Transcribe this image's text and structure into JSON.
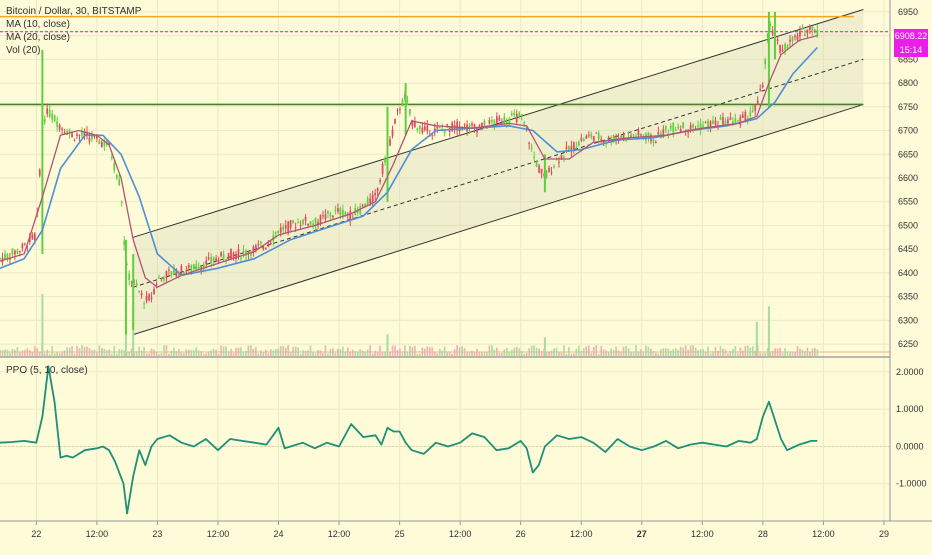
{
  "header": {
    "symbol": "Bitcoin / Dollar, 30, BITSTAMP",
    "indicators": [
      "MA (10, close)",
      "MA (20, close)",
      "Vol (20)"
    ]
  },
  "ppo_pane": {
    "title": "PPO (5, 10, close)"
  },
  "last_price": {
    "value": "6908.22",
    "countdown": "15:14",
    "color": "#e91ee9"
  },
  "colors": {
    "background": "#fdfbd8",
    "grid": "#ece9c4",
    "up_candle": "#5fcf3f",
    "down_candle": "#e04a5a",
    "ma10": "#b2566f",
    "ma20": "#4f8fd6",
    "ppo_line": "#1e8f78",
    "resistance": "#f5a623",
    "support": "#4b7f2a",
    "channel": "#333333"
  },
  "chart_data": [
    {
      "type": "candlestick",
      "title": "Bitcoin / Dollar, 30, BITSTAMP",
      "y_axis_ticks": [
        6250,
        6300,
        6350,
        6400,
        6450,
        6500,
        6550,
        6600,
        6650,
        6700,
        6750,
        6800,
        6850,
        6900,
        6950
      ],
      "ylim": [
        6225,
        6975
      ],
      "x_axis_ticks": [
        "22",
        "12:00",
        "23",
        "12:00",
        "24",
        "12:00",
        "25",
        "12:00",
        "26",
        "12:00",
        "27",
        "12:00",
        "28",
        "12:00",
        "29"
      ],
      "x_tick_day": [
        0,
        0.5,
        1,
        1.5,
        2,
        2.5,
        3,
        3.5,
        4,
        4.5,
        5,
        5.5,
        6,
        6.5,
        7
      ],
      "xlim_day": [
        -0.3,
        7.05
      ],
      "horizontal_levels": [
        {
          "price": 6940,
          "style": "solid",
          "color": "#f5a623"
        },
        {
          "price": 6908.22,
          "style": "dashed",
          "color": "#e91ee9"
        },
        {
          "price": 6755,
          "style": "solid",
          "color": "#4b7f2a"
        }
      ],
      "channel": {
        "start_day": 0.8,
        "end_day": 6.83,
        "upper": [
          6475,
          6955
        ],
        "middle": [
          6370,
          6850
        ],
        "lower": [
          6270,
          6755
        ]
      },
      "close_path": [
        [
          -0.3,
          6430
        ],
        [
          -0.2,
          6440
        ],
        [
          -0.1,
          6455
        ],
        [
          -0.05,
          6470
        ],
        [
          0.0,
          6480
        ],
        [
          0.05,
          6720
        ],
        [
          0.1,
          6740
        ],
        [
          0.2,
          6710
        ],
        [
          0.3,
          6690
        ],
        [
          0.4,
          6690
        ],
        [
          0.5,
          6680
        ],
        [
          0.6,
          6670
        ],
        [
          0.65,
          6620
        ],
        [
          0.7,
          6580
        ],
        [
          0.72,
          6480
        ],
        [
          0.75,
          6400
        ],
        [
          0.8,
          6380
        ],
        [
          0.85,
          6360
        ],
        [
          0.9,
          6340
        ],
        [
          0.95,
          6350
        ],
        [
          1.0,
          6385
        ],
        [
          1.1,
          6400
        ],
        [
          1.2,
          6405
        ],
        [
          1.3,
          6410
        ],
        [
          1.4,
          6420
        ],
        [
          1.5,
          6430
        ],
        [
          1.6,
          6440
        ],
        [
          1.7,
          6440
        ],
        [
          1.8,
          6450
        ],
        [
          1.9,
          6460
        ],
        [
          2.0,
          6490
        ],
        [
          2.1,
          6500
        ],
        [
          2.2,
          6510
        ],
        [
          2.3,
          6505
        ],
        [
          2.4,
          6520
        ],
        [
          2.5,
          6530
        ],
        [
          2.6,
          6520
        ],
        [
          2.7,
          6540
        ],
        [
          2.8,
          6560
        ],
        [
          2.9,
          6660
        ],
        [
          3.0,
          6750
        ],
        [
          3.05,
          6770
        ],
        [
          3.1,
          6720
        ],
        [
          3.15,
          6710
        ],
        [
          3.2,
          6700
        ],
        [
          3.3,
          6700
        ],
        [
          3.4,
          6705
        ],
        [
          3.5,
          6710
        ],
        [
          3.6,
          6705
        ],
        [
          3.7,
          6710
        ],
        [
          3.8,
          6720
        ],
        [
          3.9,
          6725
        ],
        [
          4.0,
          6730
        ],
        [
          4.05,
          6700
        ],
        [
          4.1,
          6650
        ],
        [
          4.15,
          6620
        ],
        [
          4.2,
          6600
        ],
        [
          4.3,
          6640
        ],
        [
          4.4,
          6660
        ],
        [
          4.5,
          6680
        ],
        [
          4.6,
          6690
        ],
        [
          4.7,
          6680
        ],
        [
          4.8,
          6685
        ],
        [
          4.9,
          6690
        ],
        [
          5.0,
          6690
        ],
        [
          5.1,
          6680
        ],
        [
          5.2,
          6700
        ],
        [
          5.3,
          6710
        ],
        [
          5.4,
          6705
        ],
        [
          5.5,
          6710
        ],
        [
          5.6,
          6715
        ],
        [
          5.7,
          6720
        ],
        [
          5.8,
          6720
        ],
        [
          5.9,
          6735
        ],
        [
          5.95,
          6750
        ],
        [
          6.0,
          6800
        ],
        [
          6.05,
          6920
        ],
        [
          6.1,
          6890
        ],
        [
          6.15,
          6870
        ],
        [
          6.2,
          6880
        ],
        [
          6.3,
          6900
        ],
        [
          6.35,
          6910
        ],
        [
          6.4,
          6920
        ],
        [
          6.45,
          6908
        ]
      ],
      "ma10_path": [
        [
          -0.3,
          6425
        ],
        [
          -0.1,
          6440
        ],
        [
          0.05,
          6560
        ],
        [
          0.2,
          6690
        ],
        [
          0.35,
          6700
        ],
        [
          0.5,
          6690
        ],
        [
          0.6,
          6670
        ],
        [
          0.7,
          6600
        ],
        [
          0.8,
          6470
        ],
        [
          0.9,
          6390
        ],
        [
          1.0,
          6370
        ],
        [
          1.2,
          6395
        ],
        [
          1.5,
          6420
        ],
        [
          1.8,
          6445
        ],
        [
          2.0,
          6480
        ],
        [
          2.3,
          6500
        ],
        [
          2.6,
          6525
        ],
        [
          2.8,
          6550
        ],
        [
          2.95,
          6630
        ],
        [
          3.1,
          6720
        ],
        [
          3.3,
          6710
        ],
        [
          3.6,
          6705
        ],
        [
          3.9,
          6715
        ],
        [
          4.05,
          6710
        ],
        [
          4.2,
          6640
        ],
        [
          4.4,
          6640
        ],
        [
          4.6,
          6675
        ],
        [
          4.9,
          6685
        ],
        [
          5.2,
          6690
        ],
        [
          5.5,
          6705
        ],
        [
          5.8,
          6715
        ],
        [
          5.95,
          6730
        ],
        [
          6.05,
          6800
        ],
        [
          6.15,
          6860
        ],
        [
          6.3,
          6890
        ],
        [
          6.45,
          6900
        ]
      ],
      "ma20_path": [
        [
          -0.3,
          6410
        ],
        [
          -0.1,
          6430
        ],
        [
          0.05,
          6490
        ],
        [
          0.2,
          6620
        ],
        [
          0.4,
          6690
        ],
        [
          0.55,
          6690
        ],
        [
          0.7,
          6650
        ],
        [
          0.85,
          6560
        ],
        [
          1.0,
          6440
        ],
        [
          1.2,
          6395
        ],
        [
          1.5,
          6410
        ],
        [
          1.8,
          6430
        ],
        [
          2.1,
          6470
        ],
        [
          2.4,
          6495
        ],
        [
          2.7,
          6520
        ],
        [
          2.9,
          6570
        ],
        [
          3.1,
          6660
        ],
        [
          3.3,
          6700
        ],
        [
          3.6,
          6705
        ],
        [
          3.9,
          6710
        ],
        [
          4.1,
          6700
        ],
        [
          4.3,
          6655
        ],
        [
          4.5,
          6660
        ],
        [
          4.8,
          6680
        ],
        [
          5.1,
          6685
        ],
        [
          5.4,
          6700
        ],
        [
          5.7,
          6710
        ],
        [
          5.95,
          6725
        ],
        [
          6.1,
          6760
        ],
        [
          6.25,
          6820
        ],
        [
          6.45,
          6875
        ]
      ],
      "spikes": [
        {
          "day": 0.05,
          "low": 6440,
          "high": 6870
        },
        {
          "day": 0.74,
          "low": 6270,
          "high": 6470
        },
        {
          "day": 0.8,
          "low": 6280,
          "high": 6440
        },
        {
          "day": 2.9,
          "low": 6550,
          "high": 6750
        },
        {
          "day": 3.05,
          "low": 6690,
          "high": 6800
        },
        {
          "day": 4.2,
          "low": 6570,
          "high": 6650
        },
        {
          "day": 6.05,
          "low": 6750,
          "high": 6950
        },
        {
          "day": 6.1,
          "low": 6850,
          "high": 6950
        }
      ],
      "volume_spikes": [
        {
          "day": 0.05,
          "value": 1.0
        },
        {
          "day": 0.74,
          "value": 0.9
        },
        {
          "day": 0.8,
          "value": 0.75
        },
        {
          "day": 2.9,
          "value": 0.35
        },
        {
          "day": 4.2,
          "value": 0.3
        },
        {
          "day": 5.95,
          "value": 0.55
        },
        {
          "day": 6.05,
          "value": 0.8
        }
      ]
    },
    {
      "type": "line",
      "title": "PPO (5, 10, close)",
      "y_axis_ticks": [
        "2.0000",
        "1.0000",
        "0.0000",
        "-1.0000"
      ],
      "y_tick_values": [
        2,
        1,
        0,
        -1
      ],
      "ylim": [
        -2.0,
        2.4
      ],
      "series": [
        {
          "values": [
            [
              -0.3,
              0.1
            ],
            [
              -0.2,
              0.12
            ],
            [
              -0.1,
              0.15
            ],
            [
              0.0,
              0.1
            ],
            [
              0.05,
              0.8
            ],
            [
              0.1,
              2.15
            ],
            [
              0.15,
              1.2
            ],
            [
              0.2,
              -0.3
            ],
            [
              0.25,
              -0.25
            ],
            [
              0.3,
              -0.3
            ],
            [
              0.4,
              -0.1
            ],
            [
              0.5,
              -0.05
            ],
            [
              0.55,
              0.0
            ],
            [
              0.6,
              -0.1
            ],
            [
              0.65,
              -0.4
            ],
            [
              0.72,
              -1.0
            ],
            [
              0.75,
              -1.8
            ],
            [
              0.8,
              -0.8
            ],
            [
              0.85,
              -0.1
            ],
            [
              0.9,
              -0.5
            ],
            [
              0.95,
              0.0
            ],
            [
              1.0,
              0.2
            ],
            [
              1.1,
              0.3
            ],
            [
              1.2,
              0.1
            ],
            [
              1.3,
              0.0
            ],
            [
              1.4,
              0.2
            ],
            [
              1.5,
              -0.1
            ],
            [
              1.6,
              0.2
            ],
            [
              1.7,
              0.15
            ],
            [
              1.8,
              0.1
            ],
            [
              1.9,
              0.05
            ],
            [
              2.0,
              0.5
            ],
            [
              2.05,
              -0.05
            ],
            [
              2.1,
              0.0
            ],
            [
              2.2,
              0.1
            ],
            [
              2.3,
              -0.05
            ],
            [
              2.4,
              0.1
            ],
            [
              2.5,
              0.0
            ],
            [
              2.6,
              0.6
            ],
            [
              2.7,
              0.25
            ],
            [
              2.8,
              0.3
            ],
            [
              2.85,
              0.05
            ],
            [
              2.9,
              0.5
            ],
            [
              2.95,
              0.4
            ],
            [
              3.0,
              0.4
            ],
            [
              3.05,
              0.1
            ],
            [
              3.1,
              -0.1
            ],
            [
              3.2,
              -0.2
            ],
            [
              3.3,
              0.1
            ],
            [
              3.4,
              0.0
            ],
            [
              3.5,
              0.1
            ],
            [
              3.6,
              0.35
            ],
            [
              3.7,
              0.25
            ],
            [
              3.8,
              -0.1
            ],
            [
              3.9,
              -0.05
            ],
            [
              4.0,
              0.15
            ],
            [
              4.05,
              -0.05
            ],
            [
              4.1,
              -0.7
            ],
            [
              4.15,
              -0.5
            ],
            [
              4.2,
              0.0
            ],
            [
              4.3,
              0.3
            ],
            [
              4.4,
              0.2
            ],
            [
              4.5,
              0.25
            ],
            [
              4.6,
              0.1
            ],
            [
              4.7,
              -0.15
            ],
            [
              4.8,
              0.2
            ],
            [
              4.9,
              0.0
            ],
            [
              5.0,
              -0.1
            ],
            [
              5.1,
              0.0
            ],
            [
              5.2,
              0.15
            ],
            [
              5.3,
              -0.05
            ],
            [
              5.4,
              0.05
            ],
            [
              5.5,
              0.1
            ],
            [
              5.6,
              0.05
            ],
            [
              5.7,
              0.0
            ],
            [
              5.8,
              0.15
            ],
            [
              5.9,
              0.1
            ],
            [
              5.95,
              0.2
            ],
            [
              6.0,
              0.8
            ],
            [
              6.05,
              1.2
            ],
            [
              6.1,
              0.7
            ],
            [
              6.15,
              0.2
            ],
            [
              6.2,
              -0.1
            ],
            [
              6.3,
              0.05
            ],
            [
              6.4,
              0.15
            ],
            [
              6.45,
              0.15
            ]
          ]
        }
      ]
    }
  ]
}
